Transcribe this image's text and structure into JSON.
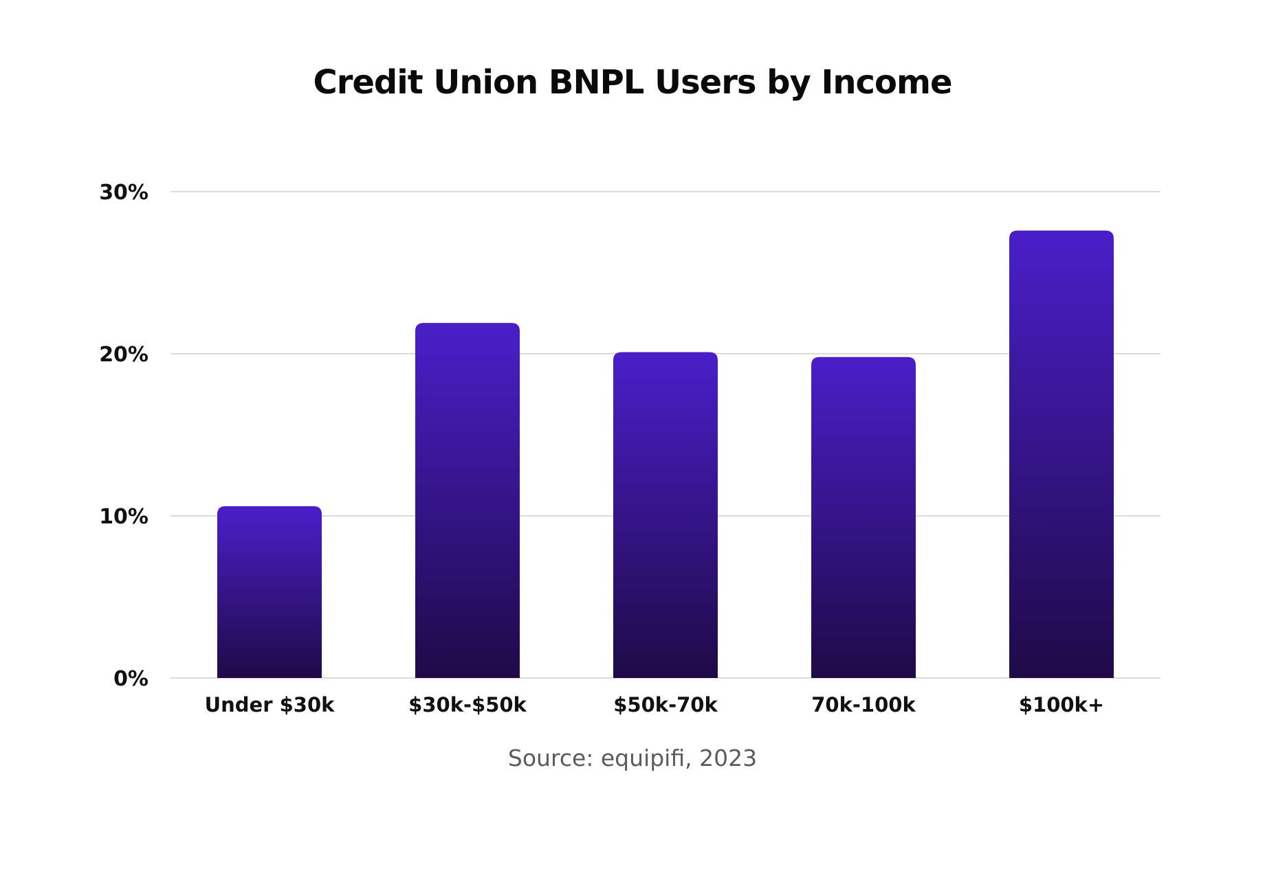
{
  "chart_data": {
    "type": "bar",
    "title": "Credit Union BNPL Users by Income",
    "categories": [
      "Under $30k",
      "$30k-$50k",
      "$50k-70k",
      "70k-100k",
      "$100k+"
    ],
    "values": [
      10.6,
      21.9,
      20.1,
      19.8,
      27.6
    ],
    "unit": "%",
    "yticks": [
      "0%",
      "10%",
      "20%",
      "30%"
    ],
    "ytick_values": [
      0,
      10,
      20,
      30
    ],
    "ylim": [
      0,
      30
    ],
    "xlabel": "",
    "ylabel": "",
    "grid": true,
    "bar_color_top": "#4a1fc9",
    "bar_color_bottom": "#1f0a47",
    "gridline_color": "#cfcfcf"
  },
  "source": "Source: equipifi, 2023"
}
